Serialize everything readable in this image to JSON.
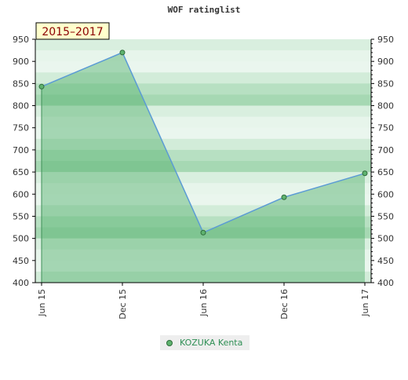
{
  "chart_data": {
    "type": "area",
    "title": "WOF ratinglist",
    "badge": "2015–2017",
    "x": [
      "Jun 15",
      "Dec 15",
      "Jun 16",
      "Dec 16",
      "Jun 17"
    ],
    "series": [
      {
        "name": "KOZUKA Kenta",
        "values": [
          843,
          920,
          513,
          593,
          647
        ]
      }
    ],
    "ylim": [
      400,
      950
    ],
    "yticks": [
      400,
      450,
      500,
      550,
      600,
      650,
      700,
      750,
      800,
      850,
      900,
      950
    ],
    "grid": true,
    "legend_position": "bottom-center"
  },
  "colors": {
    "line": "#5b9bd5",
    "marker": "#5fb36f",
    "marker_stroke": "#2e6b3a",
    "band_light": "#eaf6ee",
    "band_dark": "#a6d8b3",
    "fill": "#4fb06a",
    "badge_bg": "#ffffcc",
    "badge_text": "#8b0000"
  }
}
